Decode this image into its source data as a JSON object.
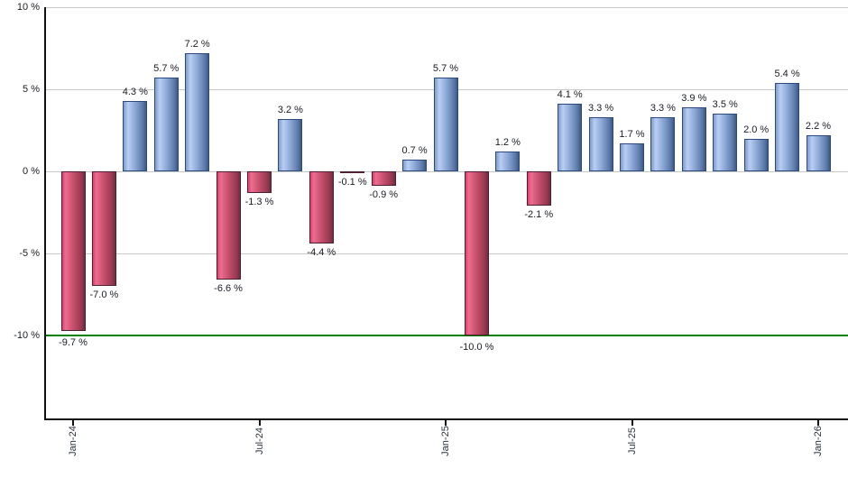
{
  "chart_data": {
    "type": "bar",
    "title": "",
    "xlabel": "",
    "ylabel": "",
    "values": [
      -9.7,
      -7.0,
      4.3,
      5.7,
      7.2,
      -6.6,
      -1.3,
      3.2,
      -4.4,
      -0.1,
      -0.9,
      0.7,
      5.7,
      -10.0,
      1.2,
      -2.1,
      4.1,
      3.3,
      1.7,
      3.3,
      3.9,
      3.5,
      2.0,
      5.4,
      2.2
    ],
    "bar_value_labels": [
      "-9.7 %",
      "-7.0 %",
      "4.3 %",
      "5.7 %",
      "7.2 %",
      "-6.6 %",
      "-1.3 %",
      "3.2 %",
      "-4.4 %",
      "-0.1 %",
      "-0.9 %",
      "0.7 %",
      "5.7 %",
      "-10.0 %",
      "1.2 %",
      "-2.1 %",
      "4.1 %",
      "3.3 %",
      "1.7 %",
      "3.3 %",
      "3.9 %",
      "3.5 %",
      "2.0 %",
      "5.4 %",
      "2.2 %"
    ],
    "x_ticks": [
      {
        "bar_index": 0,
        "label": "Jan-24"
      },
      {
        "bar_index": 6,
        "label": "Jul-24"
      },
      {
        "bar_index": 12,
        "label": "Jan-25"
      },
      {
        "bar_index": 18,
        "label": "Jul-25"
      },
      {
        "bar_index": 24,
        "label": "Jan-26"
      }
    ],
    "y_ticks": [
      {
        "value": 10,
        "label": "10 %"
      },
      {
        "value": 5,
        "label": "5 %"
      },
      {
        "value": 0,
        "label": "0 %"
      },
      {
        "value": -5,
        "label": "-5 %"
      },
      {
        "value": -10,
        "label": "-10 %"
      }
    ],
    "ylim": [
      -15.1,
      10
    ],
    "grid": true,
    "legend": false,
    "threshold_line": {
      "value": -10,
      "color": "#008000"
    },
    "colors": {
      "positive_bar_left": "#7e9ccf",
      "positive_bar_highlight": "#b9cef2",
      "positive_bar_right": "#3d5884",
      "positive_bar_border": "#2c4a7c",
      "negative_bar_left": "#e03d68",
      "negative_bar_highlight": "#ec6d90",
      "negative_bar_right": "#6f2c44",
      "negative_bar_border": "#4e1e33",
      "gridline": "#c8c8c8",
      "axis": "#111111",
      "threshold": "#008000",
      "label_text": "#191c26"
    }
  }
}
